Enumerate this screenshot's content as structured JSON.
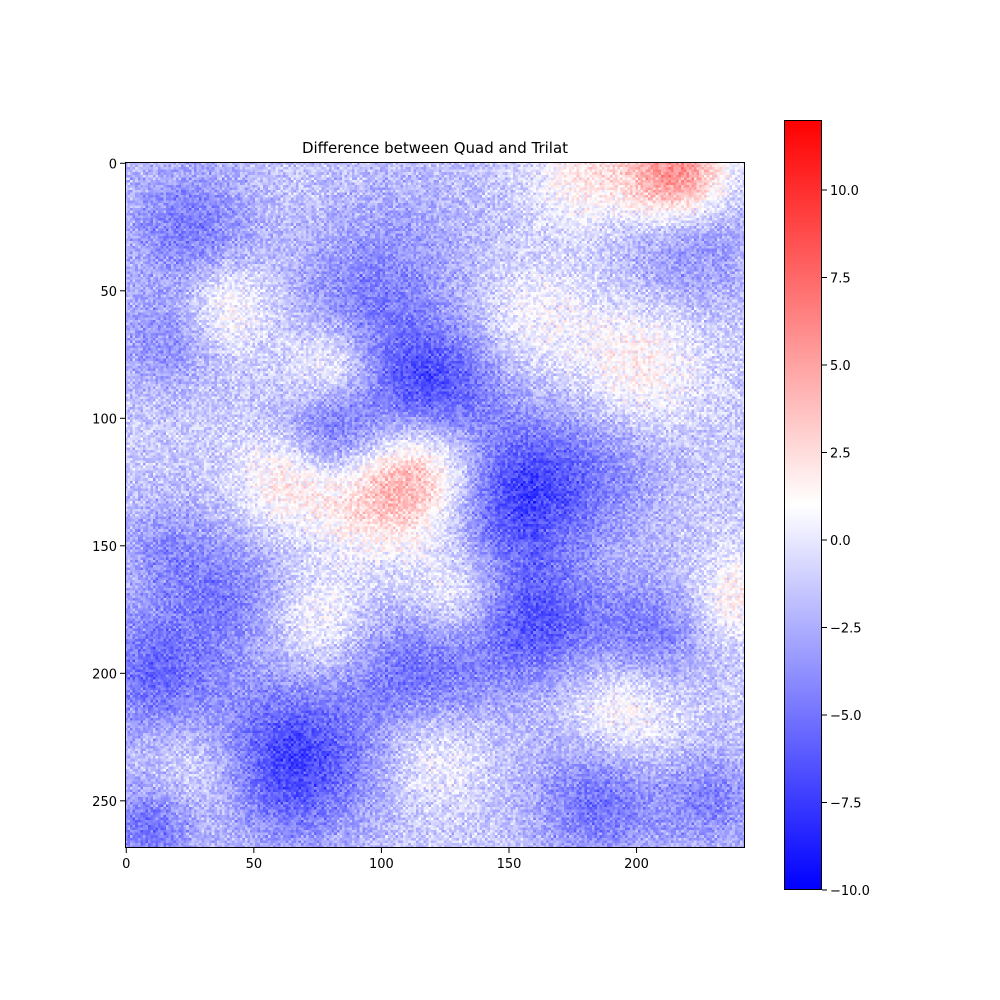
{
  "chart_data": {
    "type": "heatmap",
    "title": "Difference between Quad and Trilat",
    "xlabel": "",
    "ylabel": "",
    "grid": false,
    "xlim": [
      -0.5,
      242.5
    ],
    "ylim": [
      268.5,
      -0.5
    ],
    "x_ticks": [
      0,
      50,
      100,
      150,
      200
    ],
    "y_ticks": [
      0,
      50,
      100,
      150,
      200,
      250
    ],
    "colormap": {
      "name": "bwr",
      "low": "#0000ff",
      "mid": "#ffffff",
      "high": "#ff0000"
    },
    "colorbar": {
      "range": [
        -10.0,
        12.0
      ],
      "ticks": [
        10.0,
        7.5,
        5.0,
        2.5,
        0.0,
        -2.5,
        -5.0,
        -7.5,
        -10.0
      ],
      "tick_labels": [
        "10.0",
        "7.5",
        "5.0",
        "2.5",
        "0.0",
        "−2.5",
        "−5.0",
        "−7.5",
        "−10.0"
      ],
      "placement": "right"
    },
    "blobs": [
      {
        "x": 215,
        "y": 5,
        "r": 14,
        "v": 8
      },
      {
        "x": 180,
        "y": 5,
        "r": 14,
        "v": 3
      },
      {
        "x": 220,
        "y": 30,
        "r": 18,
        "v": -3
      },
      {
        "x": 25,
        "y": 25,
        "r": 18,
        "v": -3.5
      },
      {
        "x": 110,
        "y": 30,
        "r": 22,
        "v": -1.5
      },
      {
        "x": 40,
        "y": 55,
        "r": 12,
        "v": 3
      },
      {
        "x": 90,
        "y": 60,
        "r": 20,
        "v": -3
      },
      {
        "x": 80,
        "y": 80,
        "r": 14,
        "v": 4
      },
      {
        "x": 120,
        "y": 90,
        "r": 18,
        "v": -6
      },
      {
        "x": 80,
        "y": 108,
        "r": 16,
        "v": -5.5
      },
      {
        "x": 65,
        "y": 122,
        "r": 14,
        "v": 4.5
      },
      {
        "x": 118,
        "y": 120,
        "r": 18,
        "v": 6
      },
      {
        "x": 95,
        "y": 130,
        "r": 16,
        "v": 3.5
      },
      {
        "x": 150,
        "y": 130,
        "r": 20,
        "v": -6
      },
      {
        "x": 200,
        "y": 80,
        "r": 18,
        "v": 3
      },
      {
        "x": 185,
        "y": 120,
        "r": 20,
        "v": -2.5
      },
      {
        "x": 15,
        "y": 70,
        "r": 14,
        "v": -2.5
      },
      {
        "x": 15,
        "y": 150,
        "r": 14,
        "v": -2
      },
      {
        "x": 40,
        "y": 170,
        "r": 18,
        "v": -3
      },
      {
        "x": 10,
        "y": 200,
        "r": 18,
        "v": -4
      },
      {
        "x": 75,
        "y": 180,
        "r": 14,
        "v": 2.5
      },
      {
        "x": 130,
        "y": 170,
        "r": 14,
        "v": 3
      },
      {
        "x": 160,
        "y": 180,
        "r": 18,
        "v": -5
      },
      {
        "x": 205,
        "y": 185,
        "r": 16,
        "v": -3.5
      },
      {
        "x": 240,
        "y": 170,
        "r": 12,
        "v": 3
      },
      {
        "x": 115,
        "y": 200,
        "r": 20,
        "v": -4
      },
      {
        "x": 65,
        "y": 235,
        "r": 22,
        "v": -6
      },
      {
        "x": 120,
        "y": 230,
        "r": 14,
        "v": 2.5
      },
      {
        "x": 195,
        "y": 215,
        "r": 16,
        "v": 3
      },
      {
        "x": 185,
        "y": 250,
        "r": 18,
        "v": -4
      },
      {
        "x": 10,
        "y": 260,
        "r": 12,
        "v": -4
      },
      {
        "x": 230,
        "y": 250,
        "r": 14,
        "v": -3
      },
      {
        "x": 30,
        "y": 240,
        "r": 14,
        "v": 2
      },
      {
        "x": 160,
        "y": 60,
        "r": 14,
        "v": 2
      }
    ]
  }
}
